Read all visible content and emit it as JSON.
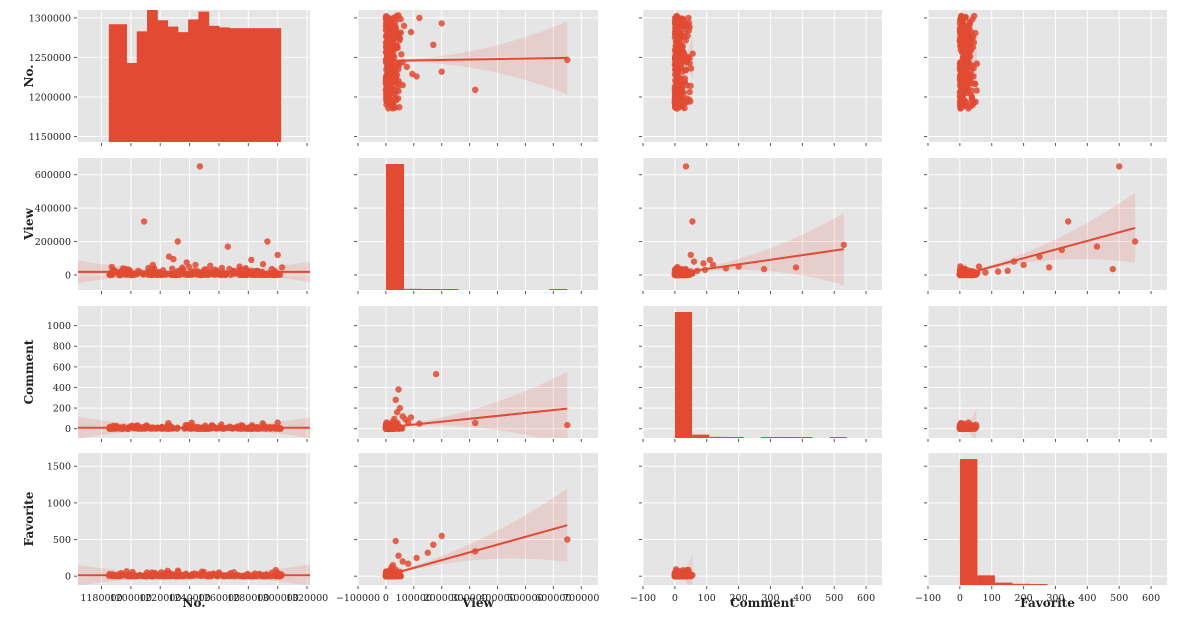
{
  "chart_data": {
    "type": "pairplot",
    "variables": [
      "No.",
      "View",
      "Comment",
      "Favorite"
    ],
    "diag_kind": "hist",
    "offdiag_kind": "reg",
    "grid": true,
    "style": "ggplot",
    "colors": {
      "panel_bg": "#e5e5e5",
      "grid": "#ffffff",
      "points": "#e24a33",
      "regression_band": "#e24a33",
      "tick": "#555555"
    },
    "axes": {
      "No.": {
        "lim": [
          1164000,
          1322000
        ],
        "ticks": [
          1180000,
          1200000,
          1220000,
          1240000,
          1260000,
          1280000,
          1300000,
          1320000
        ],
        "tick_labels": [
          "1180000",
          "1200000",
          "1220000",
          "1240000",
          "1260000",
          "1280000",
          "1300000",
          "1320000"
        ],
        "row_lim": [
          1143000,
          1310000
        ],
        "row_ticks": [
          1150000,
          1200000,
          1250000,
          1300000
        ],
        "row_tick_labels": [
          "1150000",
          "1200000",
          "1250000",
          "1300000"
        ]
      },
      "View": {
        "lim": [
          -100000,
          760000
        ],
        "ticks": [
          -100000,
          0,
          100000,
          200000,
          300000,
          400000,
          500000,
          600000,
          700000
        ],
        "tick_labels": [
          "−100000",
          "0",
          "100000",
          "200000",
          "300000",
          "400000",
          "500000",
          "600000",
          "700000"
        ],
        "row_lim": [
          -90000,
          700000
        ],
        "row_ticks": [
          0,
          200000,
          400000,
          600000
        ],
        "row_tick_labels": [
          "0",
          "200000",
          "400000",
          "600000"
        ]
      },
      "Comment": {
        "lim": [
          -100,
          650
        ],
        "ticks": [
          -100,
          0,
          100,
          200,
          300,
          400,
          500,
          600
        ],
        "tick_labels": [
          "−100",
          "0",
          "100",
          "200",
          "300",
          "400",
          "500",
          "600"
        ],
        "row_lim": [
          -90,
          1190
        ],
        "row_ticks": [
          0,
          200,
          400,
          600,
          800,
          1000
        ],
        "row_tick_labels": [
          "0",
          "200",
          "400",
          "600",
          "800",
          "1000"
        ]
      },
      "Favorite": {
        "lim": [
          -100,
          650
        ],
        "ticks": [
          -100,
          0,
          100,
          200,
          300,
          400,
          500,
          600
        ],
        "tick_labels": [
          "−100",
          "0",
          "100",
          "200",
          "300",
          "400",
          "500",
          "600"
        ],
        "row_lim": [
          -120,
          1680
        ],
        "row_ticks": [
          0,
          500,
          1000,
          1500
        ],
        "row_tick_labels": [
          "0",
          "500",
          "1000",
          "1500"
        ]
      }
    },
    "histograms": {
      "No.": {
        "bin_edges": [
          1185000,
          1190000,
          1197000,
          1204000,
          1211000,
          1218000,
          1225000,
          1232000,
          1239000,
          1246000,
          1253000,
          1260000,
          1267000,
          1274000,
          1281000,
          1288000,
          1295000,
          1302000
        ],
        "counts": [
          0,
          1292000,
          1243000,
          1283000,
          1311000,
          1297000,
          1289000,
          1282000,
          1298000,
          1308000,
          1290000,
          1288000,
          1287000,
          1287000,
          1287000,
          1287000,
          1287000
        ],
        "heights": [
          1292000,
          1292000,
          1243000,
          1283000,
          1311000,
          1297000,
          1289000,
          1282000,
          1298000,
          1308000,
          1290000,
          1288000,
          1287000,
          1287000,
          1287000,
          1287000,
          1287000
        ]
      },
      "View": {
        "bin_edges": [
          0,
          65000,
          130000,
          195000,
          260000,
          325000,
          390000,
          455000,
          520000,
          585000,
          650000
        ],
        "counts": [
          655000,
          6000,
          1500,
          1000,
          0,
          0,
          0,
          0,
          0,
          1000
        ]
      },
      "Comment": {
        "bin_edges": [
          0,
          54,
          108,
          162,
          216,
          270,
          324,
          378,
          432,
          486,
          540
        ],
        "counts": [
          1125,
          30,
          10,
          6,
          0,
          3,
          3,
          3,
          0,
          3
        ]
      },
      "Favorite": {
        "bin_edges": [
          0,
          55,
          110,
          165,
          220,
          275,
          330,
          385,
          440,
          495,
          550
        ],
        "counts": [
          1570,
          120,
          30,
          15,
          10,
          0,
          0,
          0,
          0,
          0
        ]
      }
    },
    "scatter": {
      "No._vs_View": [
        [
          1187000,
          48000
        ],
        [
          1192000,
          15000
        ],
        [
          1196000,
          37000
        ],
        [
          1201000,
          10000
        ],
        [
          1205000,
          24000
        ],
        [
          1209000,
          320000
        ],
        [
          1212000,
          42000
        ],
        [
          1215000,
          60000
        ],
        [
          1219000,
          8000
        ],
        [
          1222000,
          28000
        ],
        [
          1226000,
          110000
        ],
        [
          1229000,
          95000
        ],
        [
          1232000,
          200000
        ],
        [
          1235000,
          44000
        ],
        [
          1238000,
          75000
        ],
        [
          1241000,
          18000
        ],
        [
          1244000,
          60000
        ],
        [
          1247000,
          650000
        ],
        [
          1250000,
          30000
        ],
        [
          1254000,
          55000
        ],
        [
          1258000,
          20000
        ],
        [
          1262000,
          42000
        ],
        [
          1266000,
          170000
        ],
        [
          1270000,
          25000
        ],
        [
          1274000,
          50000
        ],
        [
          1278000,
          35000
        ],
        [
          1282000,
          90000
        ],
        [
          1286000,
          22000
        ],
        [
          1290000,
          65000
        ],
        [
          1293000,
          200000
        ],
        [
          1296000,
          35000
        ],
        [
          1300000,
          120000
        ],
        [
          1303000,
          45000
        ],
        [
          1198000,
          5000
        ],
        [
          1224000,
          3000
        ],
        [
          1256000,
          4000
        ],
        [
          1284000,
          6000
        ]
      ],
      "View_vs_Comment": [
        [
          2000,
          3
        ],
        [
          5000,
          8
        ],
        [
          10000,
          15
        ],
        [
          20000,
          40
        ],
        [
          30000,
          95
        ],
        [
          40000,
          160
        ],
        [
          50000,
          200
        ],
        [
          45000,
          380
        ],
        [
          35000,
          280
        ],
        [
          60000,
          120
        ],
        [
          80000,
          60
        ],
        [
          120000,
          50
        ],
        [
          180000,
          530
        ],
        [
          320000,
          55
        ],
        [
          650000,
          35
        ],
        [
          15000,
          22
        ],
        [
          25000,
          70
        ],
        [
          70000,
          90
        ],
        [
          90000,
          110
        ]
      ],
      "View_vs_Favorite": [
        [
          2000,
          5
        ],
        [
          8000,
          30
        ],
        [
          15000,
          80
        ],
        [
          25000,
          150
        ],
        [
          35000,
          480
        ],
        [
          45000,
          280
        ],
        [
          60000,
          200
        ],
        [
          80000,
          170
        ],
        [
          110000,
          250
        ],
        [
          150000,
          320
        ],
        [
          170000,
          430
        ],
        [
          200000,
          550
        ],
        [
          320000,
          340
        ],
        [
          650000,
          500
        ],
        [
          20000,
          120
        ],
        [
          50000,
          60
        ]
      ]
    }
  }
}
